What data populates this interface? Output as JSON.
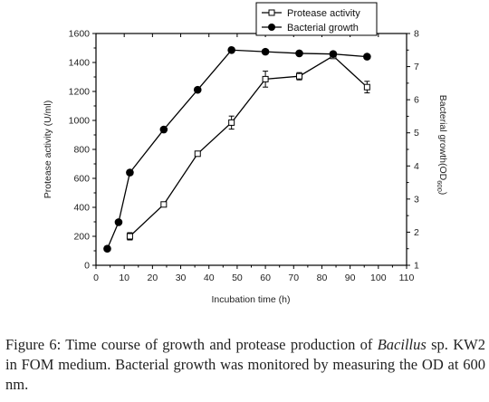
{
  "chart_data": {
    "type": "line",
    "xlabel": "Incubation time (h)",
    "ylabel_left": "Protease activity (U/ml)",
    "ylabel_right_main": "Bacterial growth(OD",
    "ylabel_right_sub": "600",
    "ylabel_right_close": ")",
    "xlim": [
      0,
      110
    ],
    "ylim_left": [
      0,
      1600
    ],
    "ylim_right": [
      1,
      8
    ],
    "x_ticks": [
      "0",
      "10",
      "20",
      "30",
      "40",
      "50",
      "60",
      "70",
      "80",
      "90",
      "100",
      "110"
    ],
    "y_left_ticks": [
      "0",
      "200",
      "400",
      "600",
      "800",
      "1000",
      "1200",
      "1400",
      "1600"
    ],
    "y_right_ticks": [
      "1",
      "2",
      "3",
      "4",
      "5",
      "6",
      "7",
      "8"
    ],
    "legend_position": "top-right",
    "series": [
      {
        "name": "Protease activity",
        "axis": "left",
        "marker": "open-square",
        "x": [
          12,
          24,
          36,
          48,
          60,
          72,
          84,
          96
        ],
        "y": [
          200,
          420,
          770,
          985,
          1285,
          1305,
          1445,
          1230
        ],
        "error": [
          25,
          15,
          15,
          45,
          55,
          25,
          15,
          40
        ]
      },
      {
        "name": "Bacterial growth",
        "axis": "right",
        "marker": "filled-circle",
        "x": [
          4,
          8,
          12,
          24,
          36,
          48,
          60,
          72,
          84,
          96
        ],
        "y": [
          1.5,
          2.3,
          3.8,
          5.1,
          6.3,
          7.5,
          7.45,
          7.4,
          7.38,
          7.3
        ]
      }
    ]
  },
  "caption": {
    "label": "Figure 6:",
    "text_before": " Time course of growth and protease production of ",
    "organism": "Bacillus",
    "text_after": " sp. KW2 in FOM medium. Bacterial growth was monitored by measuring the OD at 600 nm."
  }
}
